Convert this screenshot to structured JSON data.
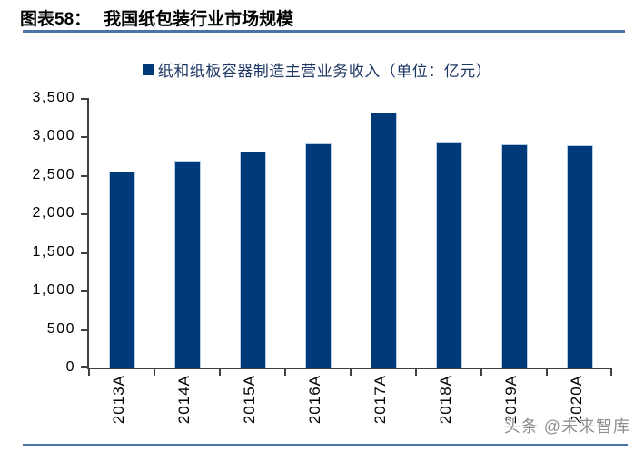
{
  "header": {
    "prefix": "图表58：",
    "title": "我国纸包装行业市场规模"
  },
  "legend": {
    "label": "纸和纸板容器制造主营业务收入（单位：亿元）"
  },
  "chart_data": {
    "type": "bar",
    "title": "我国纸包装行业市场规模",
    "legend_entries": [
      "纸和纸板容器制造主营业务收入（单位：亿元）"
    ],
    "legend_position": "top-center",
    "categories": [
      "2013A",
      "2014A",
      "2015A",
      "2016A",
      "2017A",
      "2018A",
      "2019A",
      "2020A"
    ],
    "values": [
      2540,
      2690,
      2800,
      2910,
      3310,
      2920,
      2900,
      2890
    ],
    "xlabel": "",
    "ylabel": "",
    "ylim": [
      0,
      3500
    ],
    "ytick_step": 500,
    "ytick_labels": [
      "3,500",
      "3,000",
      "2,500",
      "2,000",
      "1,500",
      "1,000",
      "500",
      "0"
    ],
    "grid": false
  },
  "watermark": {
    "text": "头条 @未来智库"
  },
  "colors": {
    "bar": "#003a78",
    "bar_border": "#b9cde5",
    "accent_line": "#4a74a8",
    "legend_text": "#1f3864",
    "axis": "#3f3f3f",
    "watermark": "#8e8e8e"
  }
}
